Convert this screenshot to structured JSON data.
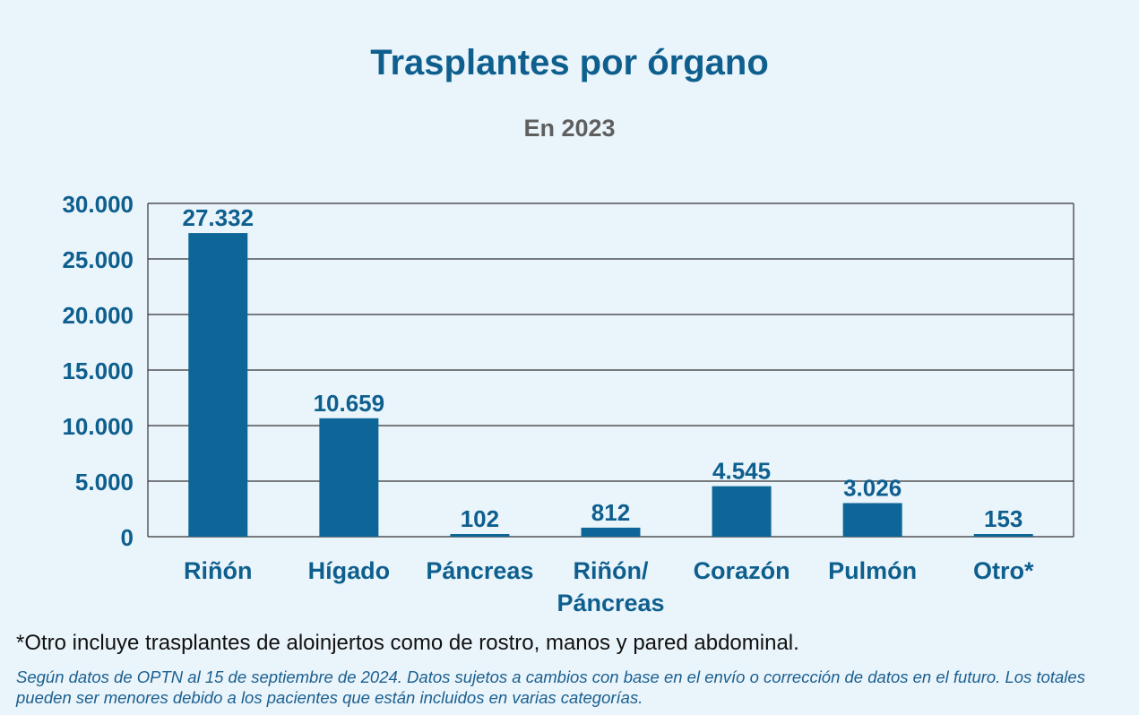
{
  "title": "Trasplantes por órgano",
  "subtitle": "En 2023",
  "footnote": "*Otro incluye trasplantes de aloinjertos como de rostro, manos y pared abdominal.",
  "source": "Según datos de OPTN al 15 de septiembre de 2024. Datos sujetos a cambios con base en el envío o corrección de datos en el futuro. Los totales pueden ser menores debido a los pacientes que están incluidos en varias categorías.",
  "colors": {
    "bar": "#0e6698",
    "axis_text": "#0e5f8e",
    "grid": "#333333"
  },
  "chart_data": {
    "type": "bar",
    "categories": [
      [
        "Riñón"
      ],
      [
        "Hígado"
      ],
      [
        "Páncreas"
      ],
      [
        "Riñón/",
        "Páncreas"
      ],
      [
        "Corazón"
      ],
      [
        "Pulmón"
      ],
      [
        "Otro*"
      ]
    ],
    "values": [
      27332,
      10659,
      102,
      812,
      4545,
      3026,
      153
    ],
    "value_labels": [
      "27.332",
      "10.659",
      "102",
      "812",
      "4.545",
      "3.026",
      "153"
    ],
    "y_ticks": [
      0,
      5000,
      10000,
      15000,
      20000,
      25000,
      30000
    ],
    "y_tick_labels": [
      "0",
      "5.000",
      "10.000",
      "15.000",
      "20.000",
      "25.000",
      "30.000"
    ],
    "ylim": [
      0,
      30000
    ],
    "grid": true,
    "legend": "none"
  }
}
